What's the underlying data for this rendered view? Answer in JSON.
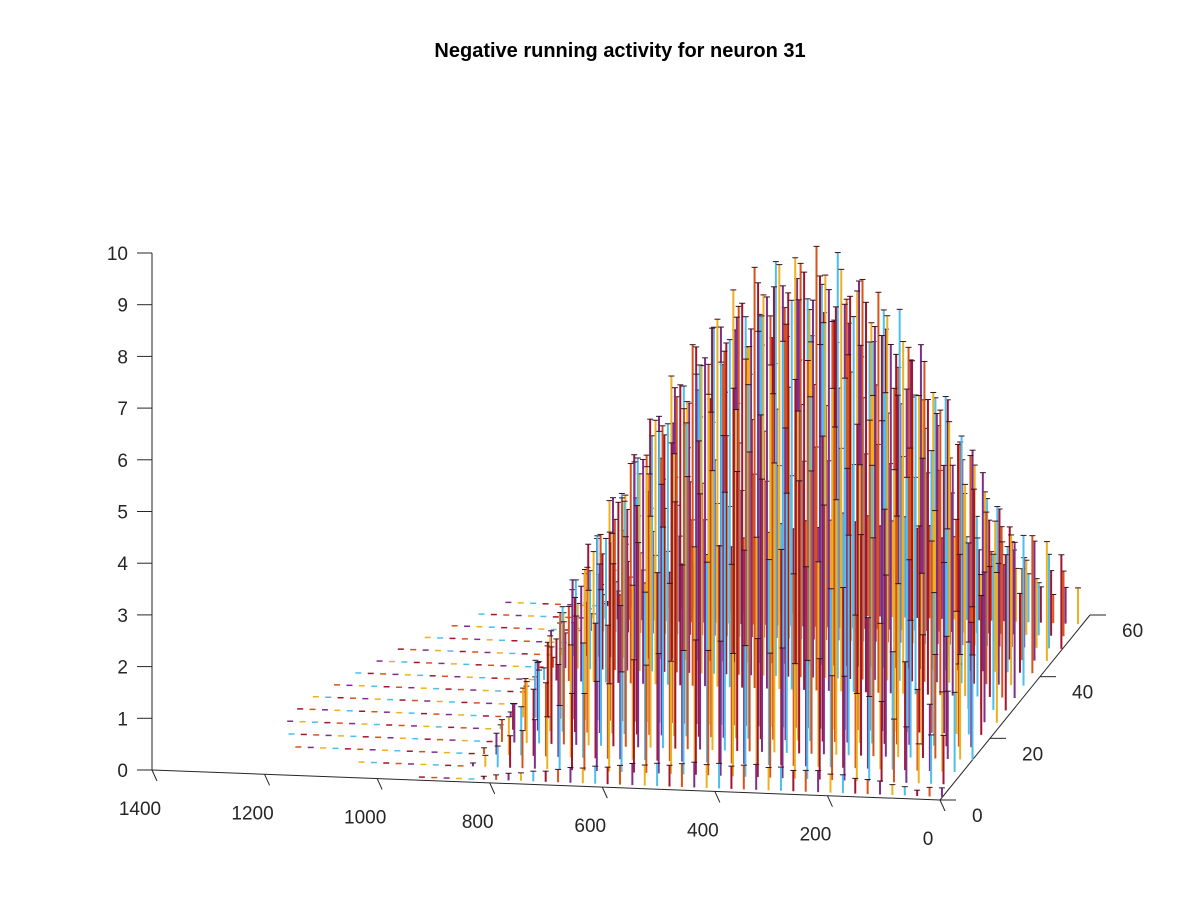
{
  "chart_data": {
    "type": "3d-stem",
    "title": "Negative running activity for neuron 31",
    "xlabel": "",
    "ylabel": "",
    "zlabel": "",
    "x_axis": {
      "ticks": [
        "0",
        "200",
        "400",
        "600",
        "800",
        "1000",
        "1200",
        "1400"
      ],
      "range": [
        0,
        1400
      ]
    },
    "y_axis": {
      "ticks": [
        "0",
        "20",
        "40",
        "60"
      ],
      "range": [
        0,
        60
      ]
    },
    "z_axis": {
      "ticks": [
        "0",
        "1",
        "2",
        "3",
        "4",
        "5",
        "6",
        "7",
        "8",
        "9",
        "10"
      ],
      "range": [
        0,
        10
      ]
    },
    "grid": false,
    "legend": "none",
    "series_colors": [
      "#7E2F8E",
      "#EDB120",
      "#4DBEEE",
      "#A2142F",
      "#D95319"
    ],
    "rows": [
      {
        "y": 1,
        "x": [
          0,
          925
        ],
        "peak": 0.5
      },
      {
        "y": 5,
        "x": [
          0,
          1050
        ],
        "peak": 2.7
      },
      {
        "y": 9,
        "x": [
          0,
          1180
        ],
        "peak": 4.4
      },
      {
        "y": 13,
        "x": [
          0,
          1210
        ],
        "peak": 5.8
      },
      {
        "y": 17,
        "x": [
          0,
          1230
        ],
        "peak": 6.9
      },
      {
        "y": 21,
        "x": [
          0,
          1230
        ],
        "peak": 7.7
      },
      {
        "y": 25,
        "x": [
          0,
          1220
        ],
        "peak": 8.3
      },
      {
        "y": 29,
        "x": [
          0,
          1200
        ],
        "peak": 8.6
      },
      {
        "y": 33,
        "x": [
          0,
          1180
        ],
        "peak": 8.6
      },
      {
        "y": 37,
        "x": [
          0,
          1160
        ],
        "peak": 8.3
      },
      {
        "y": 41,
        "x": [
          0,
          1140
        ],
        "peak": 7.6
      },
      {
        "y": 45,
        "x": [
          0,
          1110
        ],
        "peak": 6.6
      },
      {
        "y": 49,
        "x": [
          0,
          1080
        ],
        "peak": 5.2
      },
      {
        "y": 53,
        "x": [
          0,
          1050
        ],
        "peak": 3.6
      },
      {
        "y": 57,
        "x": [
          0,
          1020
        ],
        "peak": 2.0
      }
    ]
  }
}
